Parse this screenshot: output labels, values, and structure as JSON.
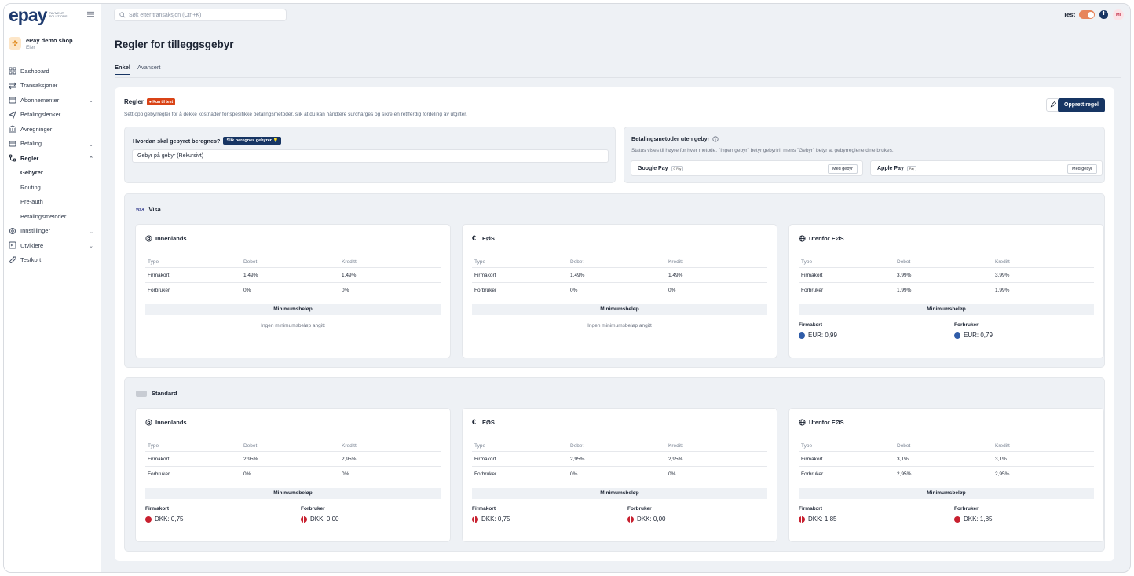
{
  "brand": {
    "logo": "epay",
    "logo_sub": "PAYMENT SOLUTIONS"
  },
  "shop": {
    "name": "ePay demo shop",
    "role": "Eier"
  },
  "nav": {
    "dashboard": "Dashboard",
    "transactions": "Transaksjoner",
    "subscriptions": "Abonnementer",
    "payment_links": "Betalingslenker",
    "settlements": "Avregninger",
    "payment": "Betaling",
    "rules": "Regler",
    "sub_fees": "Gebyrer",
    "sub_routing": "Routing",
    "sub_preauth": "Pre-auth",
    "sub_methods": "Betalingsmetoder",
    "settings": "Innstillinger",
    "developers": "Utviklere",
    "testcard": "Testkort"
  },
  "topbar": {
    "search_placeholder": "Søk etter transaksjon (Ctrl+K)",
    "test_label": "Test",
    "avatar_initials": "MI"
  },
  "page": {
    "title": "Regler for tilleggsgebyr",
    "tab_simple": "Enkel",
    "tab_advanced": "Avansert"
  },
  "rules": {
    "title": "Regler",
    "badge": "Kun til test",
    "description": "Sett opp gebyrregler for å dekke kostnader for spesifikke betalingsmetoder, slik at du kan håndtere surcharges og sikre en rettferdig fordeling av utgifter.",
    "create_button": "Opprett regel"
  },
  "calc": {
    "question": "Hvordan skal gebyret beregnes?",
    "badge": "Slik beregnes gebyrer 💡",
    "selected": "Gebyr på gebyr (Rekursivt)"
  },
  "payment_methods": {
    "title": "Betalingsmetoder uten gebyr",
    "description": "Status vises til høyre for hver metode. \"Ingen gebyr\" betyr gebyrfri, mens \"Gebyr\" betyr at gebyrreglene dine brukes.",
    "google": {
      "name": "Google Pay",
      "mini": "G Pay",
      "status": "Med gebyr"
    },
    "apple": {
      "name": "Apple Pay",
      "mini": "Pay",
      "status": "Med gebyr"
    }
  },
  "table_headers": {
    "type": "Type",
    "debit": "Debet",
    "credit": "Kreditt",
    "min": "Minimumsbeløp",
    "company": "Firmakort",
    "consumer": "Forbruker",
    "no_min": "Ingen minimumsbeløp angitt"
  },
  "visa": {
    "label": "Visa",
    "logo": "VISA",
    "domestic": {
      "title": "Innenlands",
      "company_debit": "1,49%",
      "company_credit": "1,49%",
      "consumer_debit": "0%",
      "consumer_credit": "0%"
    },
    "eea": {
      "title": "EØS",
      "company_debit": "1,49%",
      "company_credit": "1,49%",
      "consumer_debit": "0%",
      "consumer_credit": "0%"
    },
    "outside": {
      "title": "Utenfor EØS",
      "company_debit": "3,99%",
      "company_credit": "3,99%",
      "consumer_debit": "1,99%",
      "consumer_credit": "1,99%",
      "min_company": "EUR:  0,99",
      "min_consumer": "EUR:  0,79"
    }
  },
  "standard": {
    "label": "Standard",
    "domestic": {
      "title": "Innenlands",
      "company_debit": "2,95%",
      "company_credit": "2,95%",
      "consumer_debit": "0%",
      "consumer_credit": "0%",
      "min_company": "DKK:  0,75",
      "min_consumer": "DKK:  0,00"
    },
    "eea": {
      "title": "EØS",
      "company_debit": "2,95%",
      "company_credit": "2,95%",
      "consumer_debit": "0%",
      "consumer_credit": "0%",
      "min_company": "DKK:  0,75",
      "min_consumer": "DKK:  0,00"
    },
    "outside": {
      "title": "Utenfor EØS",
      "company_debit": "3,1%",
      "company_credit": "3,1%",
      "consumer_debit": "2,95%",
      "consumer_credit": "2,95%",
      "min_company": "DKK:  1,85",
      "min_consumer": "DKK:  1,85"
    }
  },
  "colors": {
    "primary": "#173563",
    "accent_orange": "#d94316",
    "toggle": "#e7855c"
  }
}
